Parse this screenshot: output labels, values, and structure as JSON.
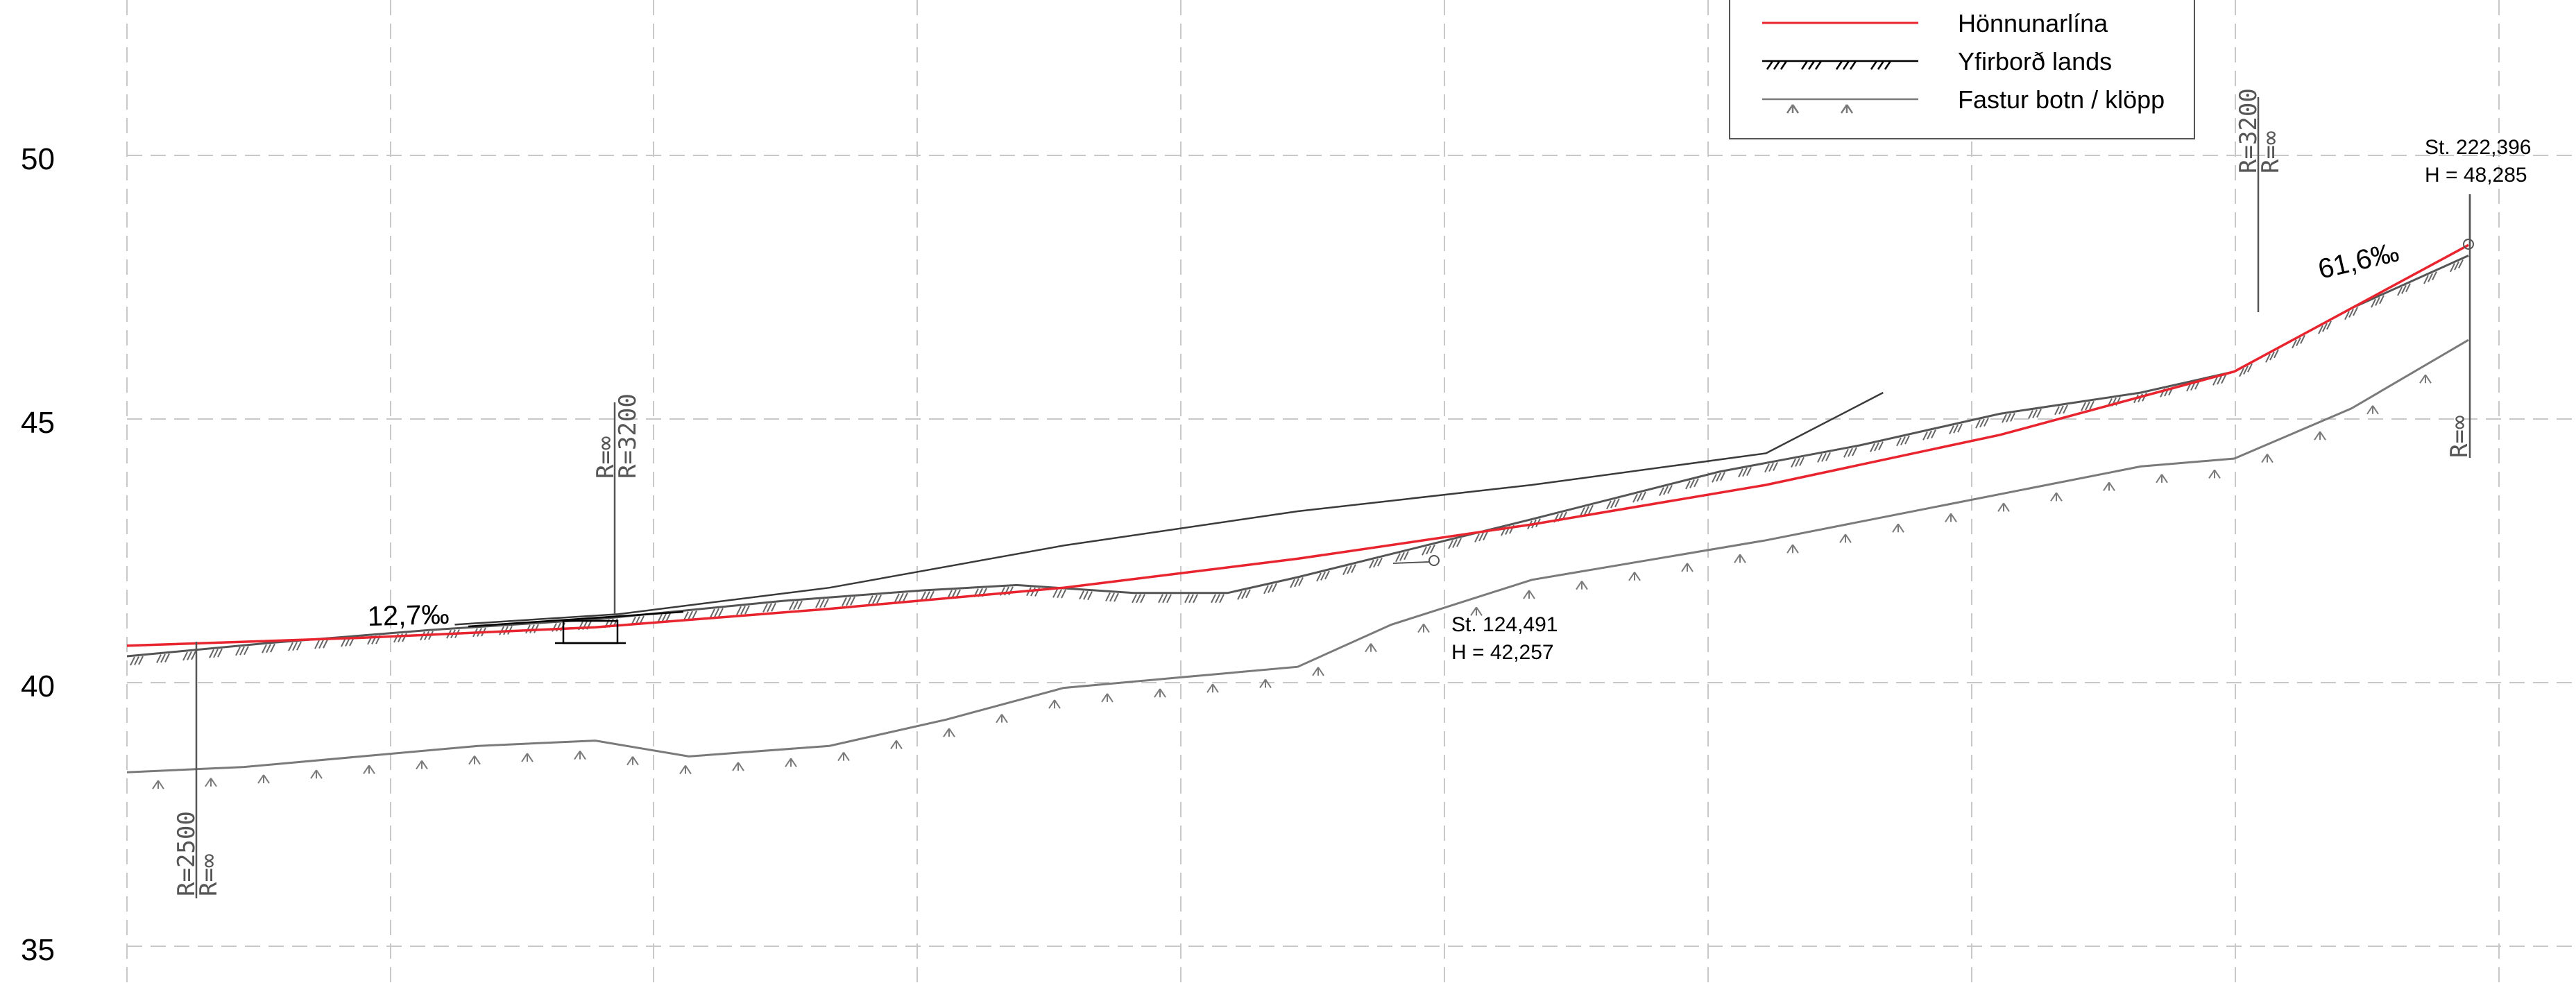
{
  "colors": {
    "design_line": "#e8242e",
    "terrain": "#000000",
    "bedrock": "#7a7a7a",
    "grid": "#c8c8c8"
  },
  "axis": {
    "y_ticks": [
      "50",
      "45",
      "40",
      "35"
    ]
  },
  "legend": {
    "items": [
      {
        "label": "Hönnunarlína",
        "symbol": "red-line"
      },
      {
        "label": "Yfirborð lands",
        "symbol": "hatched-line"
      },
      {
        "label": "Fastur botn / klöpp",
        "symbol": "rock-line"
      }
    ]
  },
  "slopes": [
    {
      "label": "12,7‰"
    },
    {
      "label": "61,6‰"
    }
  ],
  "stations": [
    {
      "station": "St. 124,491",
      "elevation": "H = 42,257"
    },
    {
      "station": "St. 222,396",
      "elevation": "H = 48,285"
    }
  ],
  "curve_markers": {
    "left": [
      "R=2500",
      "R=∞"
    ],
    "mid": [
      "R=∞",
      "R=3200"
    ],
    "right_upper": [
      "R=3200",
      "R=∞"
    ],
    "right_lower": [
      "R=∞"
    ]
  },
  "chart_data": {
    "type": "line",
    "ylim": [
      34.2,
      52.7
    ],
    "grid": true,
    "series": [
      {
        "name": "Hönnunarlína",
        "x": [
          0.0,
          0.1,
          0.2,
          0.3,
          0.4,
          0.5,
          0.6,
          0.7,
          0.8,
          0.9,
          1.0
        ],
        "y": [
          40.7,
          40.85,
          41.05,
          41.4,
          41.8,
          42.35,
          43.0,
          43.75,
          44.7,
          45.9,
          48.3
        ]
      },
      {
        "name": "Yfirborð lands",
        "x": [
          0.0,
          0.06,
          0.13,
          0.2,
          0.28,
          0.34,
          0.38,
          0.43,
          0.47,
          0.5,
          0.6,
          0.68,
          0.74,
          0.8,
          0.86,
          0.9,
          0.95,
          1.0
        ],
        "y": [
          40.5,
          40.75,
          41.0,
          41.2,
          41.55,
          41.75,
          41.85,
          41.7,
          41.7,
          42.0,
          43.1,
          44.0,
          44.5,
          45.1,
          45.5,
          45.9,
          47.1,
          48.1
        ]
      },
      {
        "name": "Fastur botn / klöpp",
        "x": [
          0.0,
          0.05,
          0.1,
          0.15,
          0.2,
          0.24,
          0.3,
          0.35,
          0.4,
          0.45,
          0.5,
          0.54,
          0.6,
          0.7,
          0.78,
          0.86,
          0.9,
          0.95,
          1.0
        ],
        "y": [
          38.3,
          38.4,
          38.6,
          38.8,
          38.9,
          38.6,
          38.8,
          39.3,
          39.9,
          40.1,
          40.3,
          41.1,
          41.95,
          42.7,
          43.4,
          44.1,
          44.25,
          45.2,
          46.5
        ]
      },
      {
        "name": "",
        "x": [
          0.14,
          0.21,
          0.3,
          0.4,
          0.5,
          0.6,
          0.7,
          0.75
        ],
        "y": [
          41.1,
          41.3,
          41.8,
          42.6,
          43.25,
          43.75,
          44.35,
          45.5
        ]
      }
    ]
  }
}
